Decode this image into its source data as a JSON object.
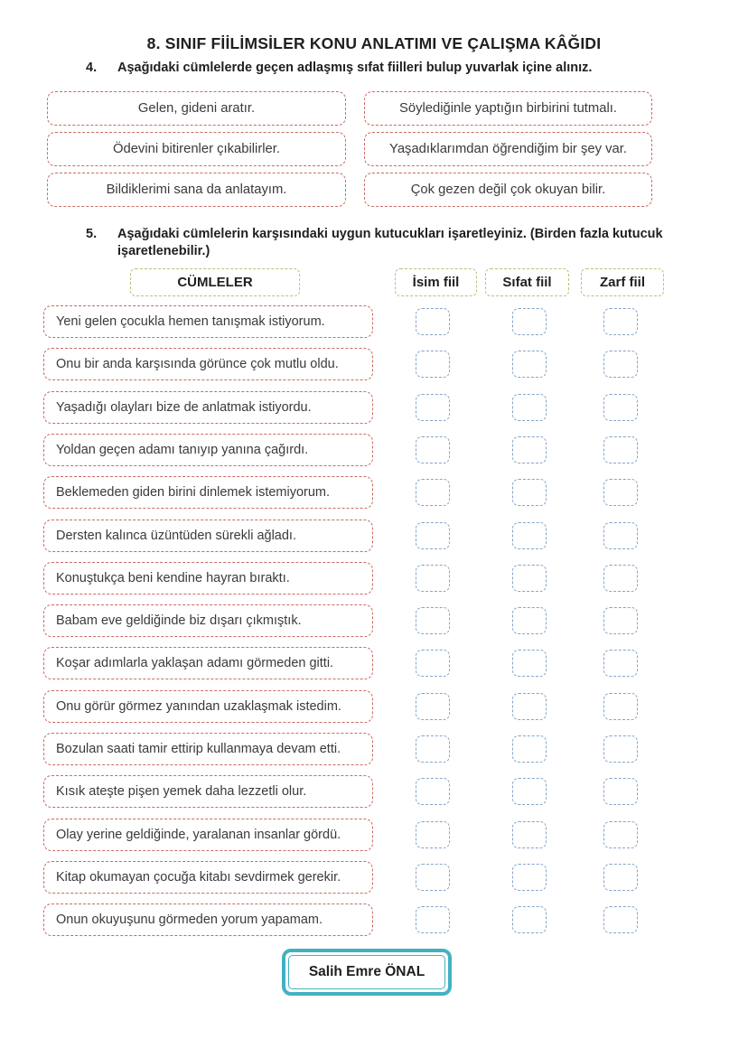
{
  "title": "8. SINIF FİİLİMSİLER KONU ANLATIMI VE ÇALIŞMA KÂĞIDI",
  "question4": {
    "number": "4.",
    "prompt": "Aşağıdaki cümlelerde geçen adlaşmış sıfat fiilleri bulup yuvarlak içine alınız.",
    "sentences": [
      "Gelen, gideni aratır.",
      "Söylediğinle yaptığın birbirini tutmalı.",
      "Ödevini bitirenler çıkabilirler.",
      "Yaşadıklarımdan öğrendiğim bir şey var.",
      "Bildiklerimi sana da anlatayım.",
      "Çok gezen değil çok okuyan bilir."
    ]
  },
  "question5": {
    "number": "5.",
    "prompt": "Aşağıdaki cümlelerin karşısındaki uygun kutucukları işaretleyiniz. (Birden fazla kutucuk işaretlenebilir.)",
    "table": {
      "sentence_header": "CÜMLELER",
      "check_headers": [
        "İsim fiil",
        "Sıfat fiil",
        "Zarf fiil"
      ],
      "rows": [
        "Yeni gelen çocukla hemen tanışmak istiyorum.",
        "Onu bir anda karşısında görünce çok mutlu oldu.",
        "Yaşadığı olayları bize de anlatmak istiyordu.",
        "Yoldan geçen adamı tanıyıp yanına çağırdı.",
        "Beklemeden giden birini dinlemek istemiyorum.",
        "Dersten kalınca üzüntüden sürekli ağladı.",
        "Konuştukça beni kendine hayran bıraktı.",
        "Babam eve geldiğinde biz dışarı çıkmıştık.",
        "Koşar adımlarla yaklaşan adamı görmeden gitti.",
        "Onu görür görmez yanından uzaklaşmak istedim.",
        "Bozulan saati tamir ettirip kullanmaya devam etti.",
        "Kısık ateşte pişen yemek daha lezzetli olur.",
        "Olay yerine geldiğinde, yaralanan insanlar gördü.",
        "Kitap okumayan çocuğa kitabı sevdirmek gerekir.",
        "Onun okuyuşunu görmeden yorum yapamam."
      ],
      "checkboxes_per_row": 3,
      "all_checkboxes_unchecked": true
    }
  },
  "footer": {
    "author": "Salih Emre ÖNAL"
  },
  "colors": {
    "sentence_box_border": "#cb6a63",
    "header_box_border": "#b5c47c",
    "checkbox_border": "#87a5c8",
    "author_box_border": "#43b1c2",
    "text": "#3a3a3a"
  }
}
